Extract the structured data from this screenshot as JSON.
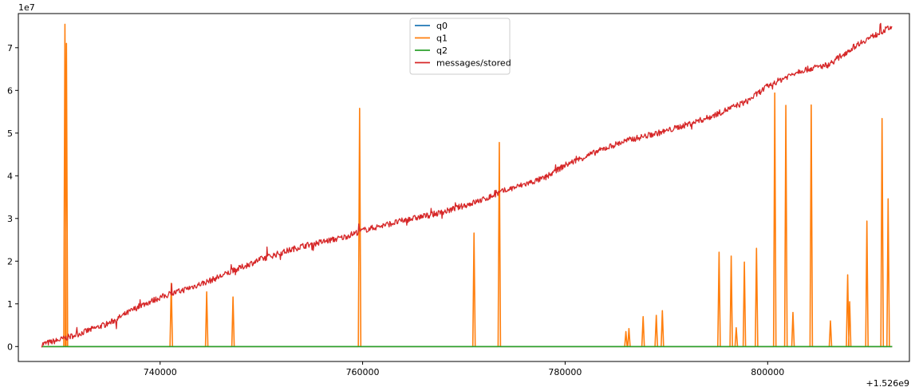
{
  "chart_data": {
    "type": "line",
    "title": "",
    "xlabel": "",
    "ylabel": "",
    "x_offset_label": "+1.526e9",
    "y_scale_label": "1e7",
    "xlim": [
      726000,
      814000
    ],
    "ylim": [
      -0.35,
      7.8
    ],
    "x_ticks": [
      740000,
      760000,
      780000,
      800000
    ],
    "x_tick_labels": [
      "740000",
      "760000",
      "780000",
      "800000"
    ],
    "y_ticks": [
      0,
      1,
      2,
      3,
      4,
      5,
      6,
      7
    ],
    "y_tick_labels": [
      "0",
      "1",
      "2",
      "3",
      "4",
      "5",
      "6",
      "7"
    ],
    "legend_position": "top-center",
    "grid": false,
    "series": [
      {
        "name": "q0",
        "color": "#1f77b4",
        "x": [
          728300,
          812300
        ],
        "y": [
          0,
          0
        ]
      },
      {
        "name": "q1",
        "color": "#ff7f0e",
        "spikes": [
          [
            730600,
            7.55
          ],
          [
            730750,
            7.1
          ],
          [
            741100,
            1.48
          ],
          [
            744600,
            1.28
          ],
          [
            747200,
            1.16
          ],
          [
            759700,
            5.58
          ],
          [
            771000,
            2.66
          ],
          [
            773500,
            4.78
          ],
          [
            786000,
            0.35
          ],
          [
            786300,
            0.42
          ],
          [
            787700,
            0.7
          ],
          [
            789000,
            0.73
          ],
          [
            789600,
            0.84
          ],
          [
            795200,
            2.21
          ],
          [
            796400,
            2.12
          ],
          [
            796900,
            0.44
          ],
          [
            797700,
            1.98
          ],
          [
            798900,
            2.3
          ],
          [
            800700,
            5.94
          ],
          [
            801800,
            5.65
          ],
          [
            802500,
            0.8
          ],
          [
            804300,
            5.66
          ],
          [
            806200,
            0.6
          ],
          [
            807900,
            1.68
          ],
          [
            808100,
            1.05
          ],
          [
            809800,
            2.94
          ],
          [
            811300,
            5.34
          ],
          [
            811900,
            3.46
          ]
        ]
      },
      {
        "name": "q2",
        "color": "#2ca02c",
        "x": [
          728300,
          812300
        ],
        "y": [
          0,
          0
        ]
      },
      {
        "name": "messages/stored",
        "color": "#d62728",
        "x": [
          728300,
          730000,
          732000,
          735000,
          738000,
          740000,
          742000,
          745000,
          748000,
          750000,
          754000,
          758000,
          760000,
          764000,
          768000,
          772000,
          774000,
          778000,
          780000,
          784000,
          786000,
          790000,
          794000,
          798000,
          800000,
          803000,
          806000,
          809000,
          812300
        ],
        "y": [
          0.05,
          0.15,
          0.3,
          0.55,
          0.95,
          1.15,
          1.3,
          1.55,
          1.85,
          2.05,
          2.35,
          2.55,
          2.72,
          2.95,
          3.15,
          3.45,
          3.65,
          3.95,
          4.25,
          4.65,
          4.82,
          5.05,
          5.35,
          5.75,
          6.1,
          6.45,
          6.6,
          7.1,
          7.5
        ]
      }
    ]
  }
}
